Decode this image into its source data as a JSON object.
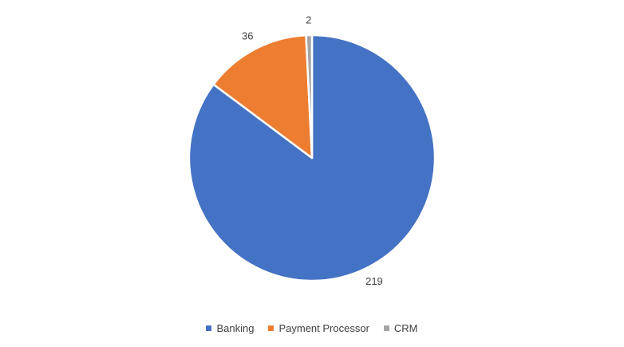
{
  "chart_data": {
    "type": "pie",
    "title": "",
    "categories": [
      "Banking",
      "Payment Processor",
      "CRM"
    ],
    "values": [
      219,
      36,
      2
    ],
    "data_labels": [
      "219",
      "36",
      "2"
    ],
    "colors": [
      "#4472C4",
      "#ED7D31",
      "#A5A5A5"
    ],
    "legend_position": "bottom",
    "start_angle": "12 o'clock, clockwise"
  }
}
